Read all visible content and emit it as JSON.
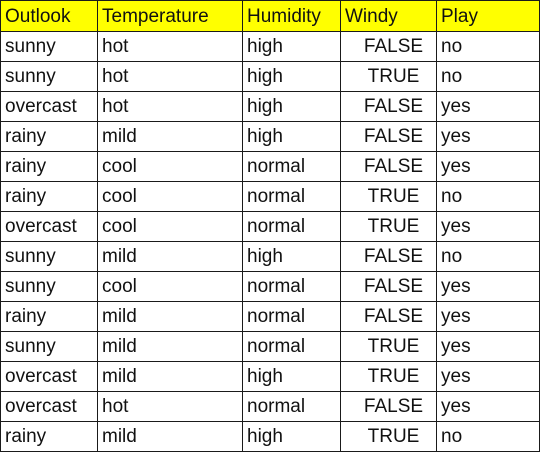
{
  "table": {
    "header_bg": "#ffff00",
    "columns": [
      "Outlook",
      "Temperature",
      "Humidity",
      "Windy",
      "Play"
    ],
    "rows": [
      [
        "sunny",
        "hot",
        "high",
        "FALSE",
        "no"
      ],
      [
        "sunny",
        "hot",
        "high",
        "TRUE",
        "no"
      ],
      [
        "overcast",
        "hot",
        "high",
        "FALSE",
        "yes"
      ],
      [
        "rainy",
        "mild",
        "high",
        "FALSE",
        "yes"
      ],
      [
        "rainy",
        "cool",
        "normal",
        "FALSE",
        "yes"
      ],
      [
        "rainy",
        "cool",
        "normal",
        "TRUE",
        "no"
      ],
      [
        "overcast",
        "cool",
        "normal",
        "TRUE",
        "yes"
      ],
      [
        "sunny",
        "mild",
        "high",
        "FALSE",
        "no"
      ],
      [
        "sunny",
        "cool",
        "normal",
        "FALSE",
        "yes"
      ],
      [
        "rainy",
        "mild",
        "normal",
        "FALSE",
        "yes"
      ],
      [
        "sunny",
        "mild",
        "normal",
        "TRUE",
        "yes"
      ],
      [
        "overcast",
        "mild",
        "high",
        "TRUE",
        "yes"
      ],
      [
        "overcast",
        "hot",
        "normal",
        "FALSE",
        "yes"
      ],
      [
        "rainy",
        "mild",
        "high",
        "TRUE",
        "no"
      ]
    ]
  }
}
